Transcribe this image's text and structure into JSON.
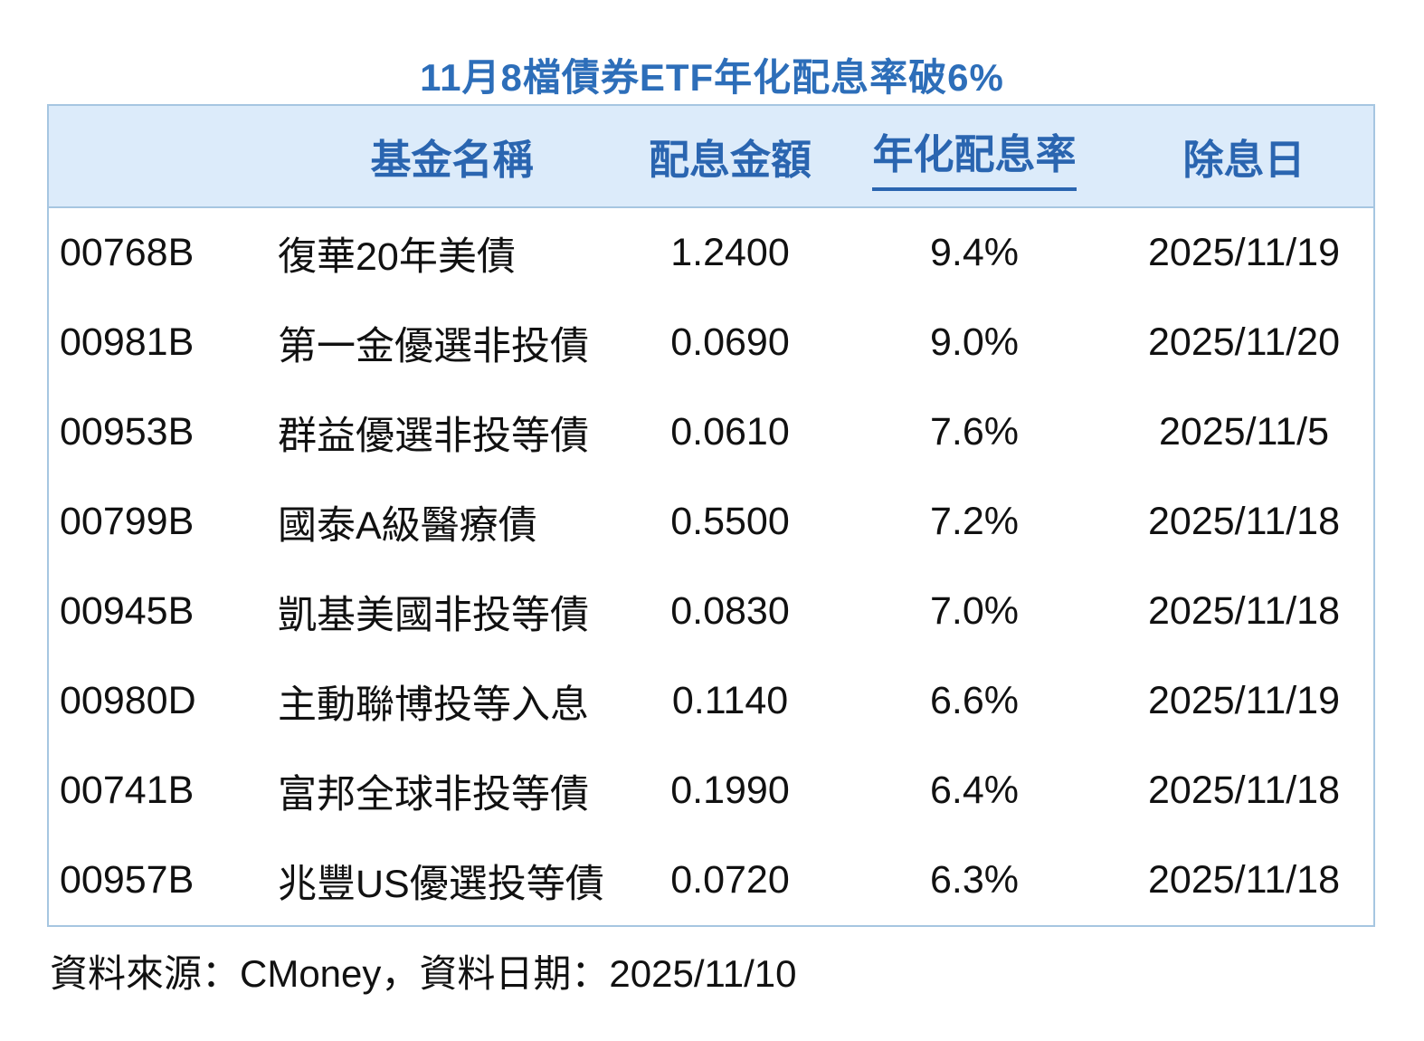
{
  "title": "11月8檔債券ETF年化配息率破6%",
  "table": {
    "headers": {
      "code": "",
      "name": "基金名稱",
      "amount": "配息金額",
      "yield": "年化配息率",
      "ex_date": "除息日"
    },
    "rows": [
      {
        "code": "00768B",
        "name": "復華20年美債",
        "amount": "1.2400",
        "yield": "9.4%",
        "ex_date": "2025/11/19"
      },
      {
        "code": "00981B",
        "name": "第一金優選非投債",
        "amount": "0.0690",
        "yield": "9.0%",
        "ex_date": "2025/11/20"
      },
      {
        "code": "00953B",
        "name": "群益優選非投等債",
        "amount": "0.0610",
        "yield": "7.6%",
        "ex_date": "2025/11/5"
      },
      {
        "code": "00799B",
        "name": "國泰A級醫療債",
        "amount": "0.5500",
        "yield": "7.2%",
        "ex_date": "2025/11/18"
      },
      {
        "code": "00945B",
        "name": "凱基美國非投等債",
        "amount": "0.0830",
        "yield": "7.0%",
        "ex_date": "2025/11/18"
      },
      {
        "code": "00980D",
        "name": "主動聯博投等入息",
        "amount": "0.1140",
        "yield": "6.6%",
        "ex_date": "2025/11/19"
      },
      {
        "code": "00741B",
        "name": "富邦全球非投等債",
        "amount": "0.1990",
        "yield": "6.4%",
        "ex_date": "2025/11/18"
      },
      {
        "code": "00957B",
        "name": "兆豐US優選投等債",
        "amount": "0.0720",
        "yield": "6.3%",
        "ex_date": "2025/11/18"
      }
    ]
  },
  "footer": {
    "source_text": "資料來源：CMoney，資料日期：2025/11/10"
  },
  "colors": {
    "title_blue": "#2d6eb9",
    "header_text_blue": "#2a65b0",
    "header_background": "#dcebfa",
    "table_border": "#a6c6e1",
    "body_text": "#111111"
  },
  "chart_data": {
    "type": "table",
    "title": "11月8檔債券ETF年化配息率破6%",
    "columns": [
      "",
      "基金名稱",
      "配息金額",
      "年化配息率",
      "除息日"
    ],
    "rows": [
      [
        "00768B",
        "復華20年美債",
        "1.2400",
        "9.4%",
        "2025/11/19"
      ],
      [
        "00981B",
        "第一金優選非投債",
        "0.0690",
        "9.0%",
        "2025/11/20"
      ],
      [
        "00953B",
        "群益優選非投等債",
        "0.0610",
        "7.6%",
        "2025/11/5"
      ],
      [
        "00799B",
        "國泰A級醫療債",
        "0.5500",
        "7.2%",
        "2025/11/18"
      ],
      [
        "00945B",
        "凱基美國非投等債",
        "0.0830",
        "7.0%",
        "2025/11/18"
      ],
      [
        "00980D",
        "主動聯博投等入息",
        "0.1140",
        "6.6%",
        "2025/11/19"
      ],
      [
        "00741B",
        "富邦全球非投等債",
        "0.1990",
        "6.4%",
        "2025/11/18"
      ],
      [
        "00957B",
        "兆豐US優選投等債",
        "0.0720",
        "6.3%",
        "2025/11/18"
      ]
    ],
    "yield_values_percent": [
      9.4,
      9.0,
      7.6,
      7.2,
      7.0,
      6.6,
      6.4,
      6.3
    ],
    "amount_values": [
      1.24,
      0.069,
      0.061,
      0.55,
      0.083,
      0.114,
      0.199,
      0.072
    ],
    "notes": "年化配息率 column header is underlined; source footer reads 資料來源：CMoney，資料日期：2025/11/10"
  }
}
